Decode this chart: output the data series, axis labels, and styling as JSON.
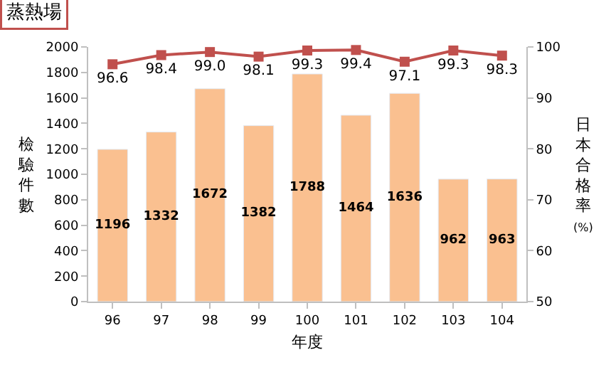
{
  "chart_data": {
    "type": "bar",
    "title": "蒸熱場",
    "xlabel": "年度",
    "ylabel": "檢驗件數",
    "y2label": "日本合格率 (%)",
    "categories": [
      "96",
      "97",
      "98",
      "99",
      "100",
      "101",
      "102",
      "103",
      "104"
    ],
    "series": [
      {
        "color": "#fac090",
        "values": [
          1196,
          1332,
          1672,
          1382,
          1788,
          1464,
          1636,
          962,
          963
        ]
      },
      {
        "type": "line",
        "axis": "y2",
        "color": "#c0504d",
        "marker": "square",
        "values": [
          96.6,
          98.4,
          99.0,
          98.1,
          99.3,
          99.4,
          97.1,
          99.3,
          98.3
        ],
        "value_labels": [
          "96.6",
          "98.4",
          "99.0",
          "98.1",
          "99.3",
          "99.4",
          "97.1",
          "99.3",
          "98.3"
        ]
      }
    ],
    "data_labels": true,
    "ylim": [
      0,
      2000
    ],
    "yticks": [
      0,
      200,
      400,
      600,
      800,
      1000,
      1200,
      1400,
      1600,
      1800,
      2000
    ],
    "y2lim": [
      50,
      100
    ],
    "y2ticks": [
      50,
      60,
      70,
      80,
      90,
      100
    ]
  }
}
